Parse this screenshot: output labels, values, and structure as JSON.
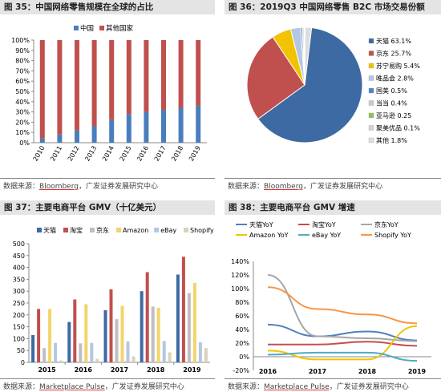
{
  "panels": {
    "p35": {
      "title": "图 35：中国网络零售规模在全球的占比",
      "source": "数据来源：Bloomberg，广发证券发展研究中心"
    },
    "p36": {
      "title": "图 36：2019Q3 中国网络零售 B2C 市场交易份额",
      "source": "数据来源：Bloomberg，广发证券发展研究中心"
    },
    "p37": {
      "title": "图 37：主要电商平台 GMV（十亿美元）",
      "source": "数据来源：Marketplace Pulse，广发证券发展研究中心"
    },
    "p38": {
      "title": "图 38：主要电商平台 GMV 增速",
      "source": "数据来源：Marketplace Pulse，广发证券发展研究中心"
    }
  },
  "colors": {
    "china": "#4472c4",
    "other": "#c0504d"
  },
  "chart_data": [
    {
      "id": "p35",
      "type": "bar",
      "stacked": true,
      "categories": [
        "2010",
        "2011",
        "2012",
        "2013",
        "2014",
        "2015",
        "2016",
        "2017",
        "2018",
        "2019"
      ],
      "series": [
        {
          "name": "中国",
          "color": "#4a7ebb",
          "values": [
            4,
            8,
            12,
            16,
            22,
            28,
            30,
            32,
            34,
            36
          ]
        },
        {
          "name": "其他国家",
          "color": "#c0504d",
          "values": [
            96,
            92,
            88,
            84,
            78,
            72,
            70,
            68,
            66,
            64
          ]
        }
      ],
      "yticks": [
        "0%",
        "10%",
        "20%",
        "30%",
        "40%",
        "50%",
        "60%",
        "70%",
        "80%",
        "90%",
        "100%"
      ],
      "ylim": [
        0,
        100
      ],
      "legend": "top"
    },
    {
      "id": "p36",
      "type": "pie",
      "slices": [
        {
          "label": "天猫 63.1%",
          "value": 63.1,
          "color": "#3d6aa3"
        },
        {
          "label": "京东 25.7%",
          "value": 25.7,
          "color": "#c0504d"
        },
        {
          "label": "苏宁易购 5.4%",
          "value": 5.4,
          "color": "#f2c300"
        },
        {
          "label": "唯品会 2.8%",
          "value": 2.8,
          "color": "#b3c7e3"
        },
        {
          "label": "国美 0.5%",
          "value": 0.5,
          "color": "#4d86c9"
        },
        {
          "label": "当当 0.4%",
          "value": 0.4,
          "color": "#c9c9c9"
        },
        {
          "label": "亚马逊 0.25",
          "value": 0.25,
          "color": "#9bbb59"
        },
        {
          "label": "聚美优品 0.1%",
          "value": 0.1,
          "color": "#d3d3d3"
        },
        {
          "label": "其他 1.8%",
          "value": 1.8,
          "color": "#dddddd"
        }
      ],
      "legend": "right"
    },
    {
      "id": "p37",
      "type": "bar",
      "categories": [
        "2015",
        "2016",
        "2017",
        "2018",
        "2019"
      ],
      "series": [
        {
          "name": "天猫",
          "color": "#3d6aa3",
          "values": [
            115,
            170,
            220,
            300,
            370
          ]
        },
        {
          "name": "淘宝",
          "color": "#c0504d",
          "values": [
            225,
            265,
            308,
            380,
            445
          ]
        },
        {
          "name": "京东",
          "color": "#bfbfbf",
          "values": [
            60,
            80,
            182,
            235,
            292
          ]
        },
        {
          "name": "Amazon",
          "color": "#f2d46a",
          "values": [
            225,
            245,
            238,
            230,
            335
          ]
        },
        {
          "name": "eBay",
          "color": "#b3c7e3",
          "values": [
            82,
            82,
            88,
            90,
            85
          ]
        },
        {
          "name": "Shopify",
          "color": "#d9d3b8",
          "values": [
            8,
            15,
            25,
            42,
            60
          ]
        }
      ],
      "yticks": [
        "0",
        "50",
        "100",
        "150",
        "200",
        "250",
        "300",
        "350",
        "400",
        "450",
        "500"
      ],
      "ylim": [
        0,
        500
      ],
      "legend": "top"
    },
    {
      "id": "p38",
      "type": "line",
      "categories": [
        "2016",
        "2017",
        "2018",
        "2019"
      ],
      "series": [
        {
          "name": "天猫YoY",
          "color": "#4f81bd",
          "values": [
            47,
            30,
            37,
            24
          ]
        },
        {
          "name": "淘宝YoY",
          "color": "#c0504d",
          "values": [
            18,
            18,
            22,
            16
          ]
        },
        {
          "name": "京东YoY",
          "color": "#a6a6a6",
          "values": [
            120,
            30,
            27,
            23
          ]
        },
        {
          "name": "Amazon YoY",
          "color": "#f2c300",
          "values": [
            9,
            -4,
            -4,
            45
          ]
        },
        {
          "name": "eBay YoY",
          "color": "#4bacc6",
          "values": [
            3,
            6,
            6,
            -6
          ]
        },
        {
          "name": "Shopify YoY",
          "color": "#f79646",
          "values": [
            102,
            70,
            62,
            49
          ]
        }
      ],
      "yticks": [
        "-20%",
        "0%",
        "20%",
        "40%",
        "60%",
        "80%",
        "100%",
        "120%",
        "140%"
      ],
      "ylim": [
        -20,
        140
      ],
      "legend": "top"
    }
  ]
}
